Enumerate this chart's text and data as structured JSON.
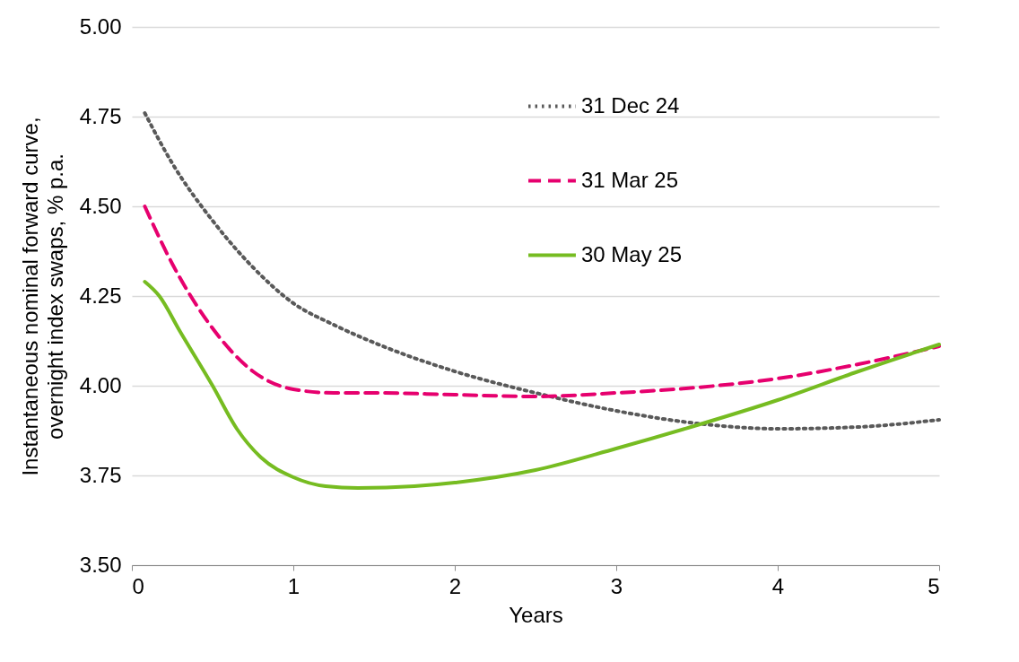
{
  "chart_data": {
    "type": "line",
    "xlabel": "Years",
    "ylabel": "Instantaneous nominal forward curve, overnight index swaps, % p.a.",
    "xlim": [
      0,
      5
    ],
    "xticks": [
      0,
      1,
      2,
      3,
      4,
      5
    ],
    "ylim": [
      3.5,
      5
    ],
    "yticks": [
      {
        "value": 3.5,
        "label": "3.50"
      },
      {
        "value": 3.75,
        "label": "3.75"
      },
      {
        "value": 4,
        "label": "4.00"
      },
      {
        "value": 4.25,
        "label": "4.25"
      },
      {
        "value": 4.5,
        "label": "4.50"
      },
      {
        "value": 4.75,
        "label": "4.75"
      },
      {
        "value": 5,
        "label": "5.00"
      }
    ],
    "grid": "y",
    "legend": "top right",
    "series": [
      {
        "name": "31 Dec 24",
        "color": "#595959",
        "line_style": "dotted",
        "x": [
          0.08,
          0.25,
          0.5,
          0.75,
          1,
          1.25,
          1.5,
          2,
          2.5,
          3,
          3.5,
          4,
          4.5,
          5
        ],
        "values": [
          4.76,
          4.62,
          4.46,
          4.33,
          4.23,
          4.17,
          4.12,
          4.04,
          3.98,
          3.93,
          3.895,
          3.88,
          3.885,
          3.905
        ]
      },
      {
        "name": "31 Mar 25",
        "color": "#e6006e",
        "line_style": "dashed",
        "x": [
          0.08,
          0.25,
          0.5,
          0.75,
          1,
          1.25,
          1.5,
          2,
          2.5,
          3,
          3.5,
          4,
          4.5,
          5
        ],
        "values": [
          4.5,
          4.34,
          4.16,
          4.04,
          3.99,
          3.98,
          3.98,
          3.975,
          3.97,
          3.98,
          3.995,
          4.02,
          4.06,
          4.11
        ]
      },
      {
        "name": "30 May 25",
        "color": "#76bc21",
        "line_style": "solid",
        "x": [
          0.08,
          0.17,
          0.3,
          0.5,
          0.65,
          0.8,
          1,
          1.2,
          1.4,
          1.75,
          2,
          2.5,
          3,
          3.5,
          4,
          4.5,
          5
        ],
        "values": [
          4.29,
          4.25,
          4.15,
          4.0,
          3.88,
          3.8,
          3.745,
          3.72,
          3.715,
          3.72,
          3.73,
          3.765,
          3.825,
          3.89,
          3.96,
          4.04,
          4.115
        ]
      }
    ]
  }
}
